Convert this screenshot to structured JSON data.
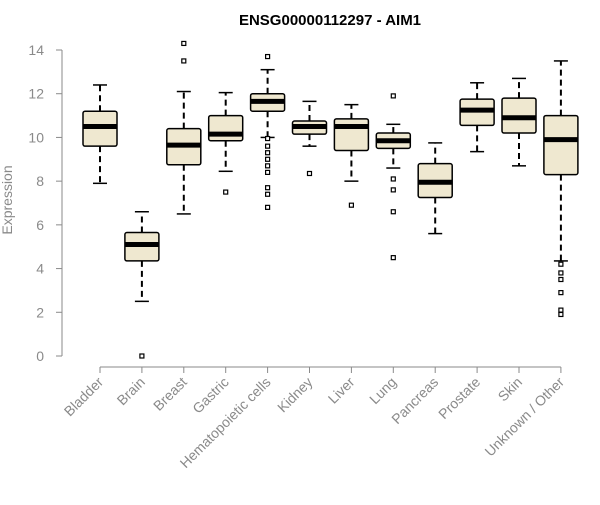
{
  "chart_data": {
    "type": "box",
    "title": "ENSG00000112297 - AIM1",
    "ylabel": "Expression",
    "ylim": [
      0,
      14
    ],
    "yticks": [
      0,
      2,
      4,
      6,
      8,
      10,
      12,
      14
    ],
    "grid": false,
    "legend": "none",
    "box_fill": "#efe8d0",
    "box_stroke": "#000000",
    "categories": [
      "Bladder",
      "Brain",
      "Breast",
      "Gastric",
      "Hematopoietic cells",
      "Kidney",
      "Liver",
      "Lung",
      "Pancreas",
      "Prostate",
      "Skin",
      "Unknown / Other"
    ],
    "boxes": [
      {
        "category": "Bladder",
        "whisker_low": 7.9,
        "q1": 9.6,
        "median": 10.5,
        "q3": 11.2,
        "whisker_high": 12.4,
        "outliers": []
      },
      {
        "category": "Brain",
        "whisker_low": 2.5,
        "q1": 4.35,
        "median": 5.1,
        "q3": 5.65,
        "whisker_high": 6.6,
        "outliers": [
          0.0
        ]
      },
      {
        "category": "Breast",
        "whisker_low": 6.5,
        "q1": 8.75,
        "median": 9.65,
        "q3": 10.4,
        "whisker_high": 12.1,
        "outliers": [
          14.3,
          13.5
        ]
      },
      {
        "category": "Gastric",
        "whisker_low": 8.45,
        "q1": 9.85,
        "median": 10.15,
        "q3": 11.0,
        "whisker_high": 12.05,
        "outliers": [
          7.5
        ]
      },
      {
        "category": "Hematopoietic cells",
        "whisker_low": 10.0,
        "q1": 11.2,
        "median": 11.65,
        "q3": 12.0,
        "whisker_high": 13.1,
        "outliers": [
          13.7,
          9.95,
          9.6,
          9.3,
          9.0,
          8.7,
          8.4,
          7.7,
          7.4,
          6.8
        ]
      },
      {
        "category": "Kidney",
        "whisker_low": 9.6,
        "q1": 10.15,
        "median": 10.5,
        "q3": 10.75,
        "whisker_high": 11.65,
        "outliers": [
          8.35
        ]
      },
      {
        "category": "Liver",
        "whisker_low": 8.0,
        "q1": 9.4,
        "median": 10.5,
        "q3": 10.85,
        "whisker_high": 11.5,
        "outliers": [
          6.9
        ]
      },
      {
        "category": "Lung",
        "whisker_low": 8.6,
        "q1": 9.5,
        "median": 9.85,
        "q3": 10.2,
        "whisker_high": 10.6,
        "outliers": [
          11.9,
          8.1,
          7.6,
          6.6,
          4.5
        ]
      },
      {
        "category": "Pancreas",
        "whisker_low": 5.6,
        "q1": 7.25,
        "median": 7.95,
        "q3": 8.8,
        "whisker_high": 9.75,
        "outliers": []
      },
      {
        "category": "Prostate",
        "whisker_low": 9.35,
        "q1": 10.55,
        "median": 11.25,
        "q3": 11.75,
        "whisker_high": 12.5,
        "outliers": []
      },
      {
        "category": "Skin",
        "whisker_low": 8.7,
        "q1": 10.2,
        "median": 10.9,
        "q3": 11.8,
        "whisker_high": 12.7,
        "outliers": []
      },
      {
        "category": "Unknown / Other",
        "whisker_low": 4.35,
        "q1": 8.3,
        "median": 9.9,
        "q3": 11.0,
        "whisker_high": 13.5,
        "outliers": [
          4.2,
          3.8,
          3.5,
          2.9,
          2.1,
          1.9
        ]
      }
    ]
  }
}
